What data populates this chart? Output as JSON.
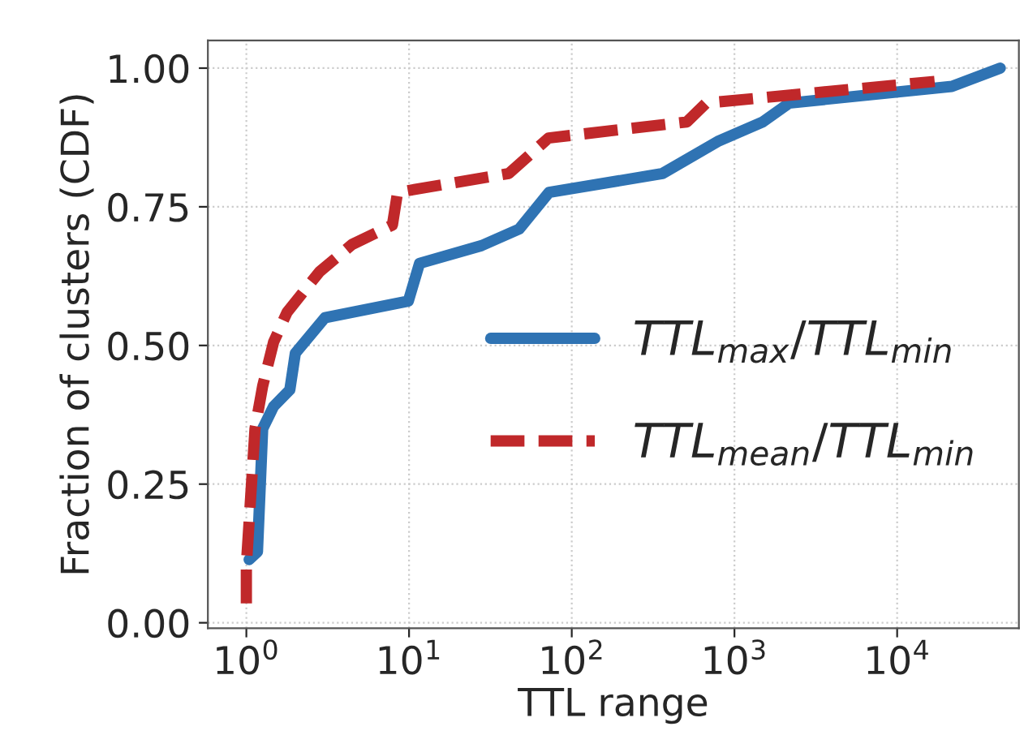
{
  "chart_data": {
    "type": "line",
    "xlabel": "TTL range",
    "ylabel": "Fraction of clusters (CDF)",
    "log": "x",
    "grid": true,
    "legend": "right",
    "xlim": [
      0.58,
      56000
    ],
    "ylim": [
      -0.01,
      1.05
    ],
    "xticks": [
      {
        "value": 1,
        "label": "10$^{0}$"
      },
      {
        "value": 10,
        "label": "10$^{1}$"
      },
      {
        "value": 100,
        "label": "10$^{2}$"
      },
      {
        "value": 1000,
        "label": "10$^{3}$"
      },
      {
        "value": 10000,
        "label": "10$^{4}$"
      }
    ],
    "yticks": [
      {
        "value": 0,
        "label": "0.00"
      },
      {
        "value": 0.25,
        "label": "0.25"
      },
      {
        "value": 0.5,
        "label": "0.50"
      },
      {
        "value": 0.75,
        "label": "0.75"
      },
      {
        "value": 1,
        "label": "1.00"
      }
    ],
    "series": [
      {
        "name": "TTL$_{max}$/TTL$_{min}$",
        "color": "#2f73b3",
        "line_style": "solid",
        "x": [
          1.04,
          1.17,
          1.26,
          1.47,
          1.85,
          2.0,
          3.04,
          9.9,
          11.6,
          27.9,
          47.6,
          72.5,
          361,
          804,
          1490,
          2170,
          21700,
          43000
        ],
        "values": [
          0.114,
          0.128,
          0.35,
          0.39,
          0.42,
          0.486,
          0.55,
          0.58,
          0.648,
          0.68,
          0.71,
          0.776,
          0.81,
          0.869,
          0.903,
          0.937,
          0.967,
          1.0
        ]
      },
      {
        "name": "TTL$_{mean}$/TTL$_{min}$",
        "color": "#c0282a",
        "line_style": "dashed",
        "x": [
          1.0,
          1.0,
          1.13,
          1.26,
          1.47,
          1.78,
          2.82,
          4.46,
          7.9,
          8.5,
          41,
          72,
          510,
          670,
          17000
        ],
        "values": [
          0.035,
          0.104,
          0.35,
          0.427,
          0.506,
          0.56,
          0.633,
          0.682,
          0.717,
          0.776,
          0.81,
          0.874,
          0.903,
          0.937,
          0.976
        ]
      }
    ]
  }
}
